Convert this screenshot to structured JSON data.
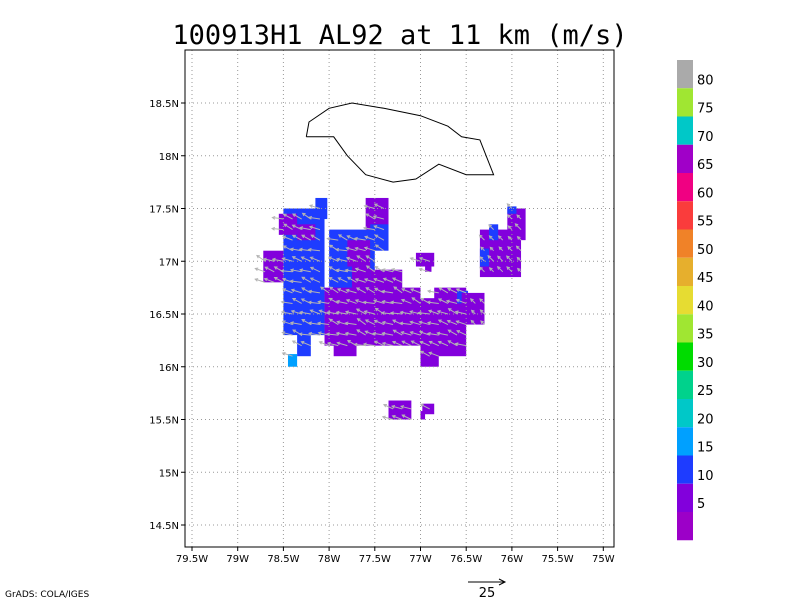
{
  "title": "100913H1 AL92 at 11 km (m/s)",
  "credit": "GrADS: COLA/IGES",
  "reference_vector": {
    "label": "25",
    "value": 25
  },
  "chart_data": {
    "type": "heatmap",
    "title": "100913H1 AL92 at 11 km (m/s)",
    "xlim": [
      -79.5,
      -74.95
    ],
    "ylim": [
      14.3,
      19.0
    ],
    "x_ticks": [
      {
        "value": -79.5,
        "label": "79.5W"
      },
      {
        "value": -79.0,
        "label": "79W"
      },
      {
        "value": -78.5,
        "label": "78.5W"
      },
      {
        "value": -78.0,
        "label": "78W"
      },
      {
        "value": -77.5,
        "label": "77.5W"
      },
      {
        "value": -77.0,
        "label": "77W"
      },
      {
        "value": -76.5,
        "label": "76.5W"
      },
      {
        "value": -76.0,
        "label": "76W"
      },
      {
        "value": -75.5,
        "label": "75.5W"
      },
      {
        "value": -75.0,
        "label": "75W"
      }
    ],
    "y_ticks": [
      {
        "value": 14.5,
        "label": "14.5N"
      },
      {
        "value": 15.0,
        "label": "15N"
      },
      {
        "value": 15.5,
        "label": "15.5N"
      },
      {
        "value": 16.0,
        "label": "16N"
      },
      {
        "value": 16.5,
        "label": "16.5N"
      },
      {
        "value": 17.0,
        "label": "17N"
      },
      {
        "value": 17.5,
        "label": "17.5N"
      },
      {
        "value": 18.0,
        "label": "18N"
      },
      {
        "value": 18.5,
        "label": "18.5N"
      }
    ],
    "grid": true,
    "colorbar": {
      "levels": [
        {
          "label": "",
          "color": "#9c00c8"
        },
        {
          "label": "5",
          "color": "#8200dc"
        },
        {
          "label": "10",
          "color": "#1e3cff"
        },
        {
          "label": "15",
          "color": "#00a0ff"
        },
        {
          "label": "20",
          "color": "#00c8c8"
        },
        {
          "label": "25",
          "color": "#00d28c"
        },
        {
          "label": "30",
          "color": "#00dc00"
        },
        {
          "label": "35",
          "color": "#a0e632"
        },
        {
          "label": "40",
          "color": "#e6dc32"
        },
        {
          "label": "45",
          "color": "#e6af2d"
        },
        {
          "label": "50",
          "color": "#f08228"
        },
        {
          "label": "55",
          "color": "#fa3c3c"
        },
        {
          "label": "60",
          "color": "#f00082"
        },
        {
          "label": "65",
          "color": "#a000c8"
        },
        {
          "label": "70",
          "color": "#00c8c8"
        },
        {
          "label": "75",
          "color": "#a0e632"
        },
        {
          "label": "80",
          "color": "#aaaaaa"
        }
      ]
    },
    "coastline": [
      [
        -78.25,
        18.18
      ],
      [
        -78.22,
        18.32
      ],
      [
        -78.0,
        18.45
      ],
      [
        -77.75,
        18.5
      ],
      [
        -77.4,
        18.45
      ],
      [
        -77.0,
        18.38
      ],
      [
        -76.7,
        18.28
      ],
      [
        -76.55,
        18.18
      ],
      [
        -76.35,
        18.15
      ],
      [
        -76.2,
        17.82
      ],
      [
        -76.5,
        17.82
      ],
      [
        -76.8,
        17.92
      ],
      [
        -77.05,
        17.78
      ],
      [
        -77.3,
        17.75
      ],
      [
        -77.6,
        17.82
      ],
      [
        -77.8,
        18.0
      ],
      [
        -77.95,
        18.18
      ],
      [
        -78.25,
        18.18
      ]
    ],
    "wind_speed_blocks": [
      {
        "x0": -78.5,
        "x1": -78.05,
        "y0": 16.3,
        "y1": 17.5,
        "speed": 12
      },
      {
        "x0": -78.15,
        "x1": -78.02,
        "y0": 17.4,
        "y1": 17.6,
        "speed": 12
      },
      {
        "x0": -78.72,
        "x1": -78.5,
        "y0": 16.8,
        "y1": 17.1,
        "speed": 8
      },
      {
        "x0": -78.55,
        "x1": -78.35,
        "y0": 17.25,
        "y1": 17.45,
        "speed": 8
      },
      {
        "x0": -78.35,
        "x1": -78.15,
        "y0": 17.2,
        "y1": 17.35,
        "speed": 8
      },
      {
        "x0": -78.35,
        "x1": -78.2,
        "y0": 16.1,
        "y1": 16.35,
        "speed": 12
      },
      {
        "x0": -78.45,
        "x1": -78.35,
        "y0": 16.0,
        "y1": 16.12,
        "speed": 17
      },
      {
        "x0": -78.0,
        "x1": -77.5,
        "y0": 16.7,
        "y1": 17.3,
        "speed": 12
      },
      {
        "x0": -77.8,
        "x1": -77.55,
        "y0": 16.95,
        "y1": 17.2,
        "speed": 8
      },
      {
        "x0": -77.6,
        "x1": -77.35,
        "y0": 17.3,
        "y1": 17.6,
        "speed": 7
      },
      {
        "x0": -77.55,
        "x1": -77.35,
        "y0": 17.1,
        "y1": 17.35,
        "speed": 12
      },
      {
        "x0": -77.75,
        "x1": -77.55,
        "y0": 16.75,
        "y1": 16.95,
        "speed": 7
      },
      {
        "x0": -78.05,
        "x1": -77.0,
        "y0": 16.2,
        "y1": 16.75,
        "speed": 7
      },
      {
        "x0": -77.55,
        "x1": -77.2,
        "y0": 16.7,
        "y1": 16.92,
        "speed": 7
      },
      {
        "x0": -77.95,
        "x1": -77.7,
        "y0": 16.1,
        "y1": 16.25,
        "speed": 7
      },
      {
        "x0": -77.0,
        "x1": -76.5,
        "y0": 16.1,
        "y1": 16.65,
        "speed": 7
      },
      {
        "x0": -76.85,
        "x1": -76.5,
        "y0": 16.55,
        "y1": 16.75,
        "speed": 7
      },
      {
        "x0": -76.6,
        "x1": -76.48,
        "y0": 16.6,
        "y1": 16.72,
        "speed": 12
      },
      {
        "x0": -76.55,
        "x1": -76.3,
        "y0": 16.4,
        "y1": 16.7,
        "speed": 7
      },
      {
        "x0": -77.0,
        "x1": -76.8,
        "y0": 16.0,
        "y1": 16.12,
        "speed": 7
      },
      {
        "x0": -77.05,
        "x1": -76.85,
        "y0": 16.95,
        "y1": 17.08,
        "speed": 7
      },
      {
        "x0": -76.95,
        "x1": -76.88,
        "y0": 16.9,
        "y1": 16.98,
        "speed": 7
      },
      {
        "x0": -76.35,
        "x1": -75.9,
        "y0": 16.85,
        "y1": 17.3,
        "speed": 7
      },
      {
        "x0": -76.05,
        "x1": -75.85,
        "y0": 17.2,
        "y1": 17.5,
        "speed": 7
      },
      {
        "x0": -76.05,
        "x1": -75.95,
        "y0": 17.45,
        "y1": 17.52,
        "speed": 12
      },
      {
        "x0": -76.25,
        "x1": -76.15,
        "y0": 17.2,
        "y1": 17.35,
        "speed": 12
      },
      {
        "x0": -76.35,
        "x1": -76.25,
        "y0": 16.95,
        "y1": 17.12,
        "speed": 12
      },
      {
        "x0": -77.35,
        "x1": -77.1,
        "y0": 15.5,
        "y1": 15.68,
        "speed": 7
      },
      {
        "x0": -76.98,
        "x1": -76.85,
        "y0": 15.55,
        "y1": 15.65,
        "speed": 7
      },
      {
        "x0": -77.0,
        "x1": -76.95,
        "y0": 15.5,
        "y1": 15.58,
        "speed": 7
      }
    ],
    "wind_vectors": {
      "region": {
        "x0": -78.65,
        "x1": -75.95,
        "y0": 15.95,
        "y1": 17.6
      },
      "typical_u": -12,
      "typical_v": 3
    }
  }
}
